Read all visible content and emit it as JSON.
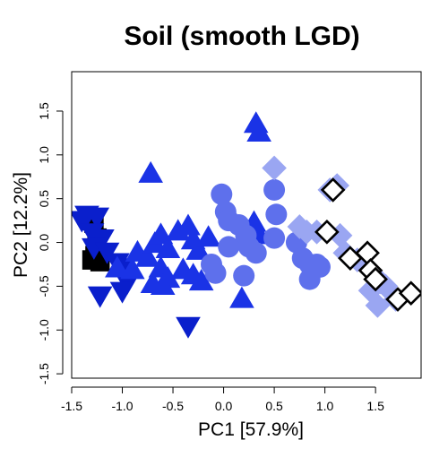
{
  "chart_data": {
    "type": "scatter",
    "title": "Soil (smooth LGD)",
    "xlabel": "PC1 [57.9%]",
    "ylabel": "PC2 [12.2%]",
    "xlim": [
      -1.5,
      1.95
    ],
    "ylim": [
      -1.55,
      1.95
    ],
    "xticks": [
      -1.5,
      -1.0,
      -0.5,
      0.0,
      0.5,
      1.0,
      1.5
    ],
    "xtick_labels": [
      "-1.5",
      "-1.0",
      "-0.5",
      "0.0",
      "0.5",
      "1.0",
      "1.5"
    ],
    "yticks": [
      -1.5,
      -1.0,
      -0.5,
      0.0,
      0.5,
      1.0,
      1.5
    ],
    "ytick_labels": [
      "-1.5",
      "-1.0",
      "-0.5",
      "0.0",
      "0.5",
      "1.0",
      "1.5"
    ],
    "grid": false,
    "legend": "none",
    "colors": {
      "black": "#000000",
      "dark_blue": "#0a1fcc",
      "blue": "#1a33e6",
      "mid_blue": "#4a5ee8",
      "light_blue": "#5e70ec",
      "pale_blue": "#9aa6f2"
    },
    "series": [
      {
        "marker": "square",
        "color": "#000000",
        "points": [
          [
            -1.32,
            0.25
          ],
          [
            -1.28,
            0.22
          ],
          [
            -1.25,
            0.05
          ],
          [
            -1.3,
            -0.2
          ],
          [
            -1.22,
            -0.22
          ],
          [
            -1.27,
            -0.15
          ]
        ]
      },
      {
        "marker": "triangle-down",
        "color": "#0a1fcc",
        "points": [
          [
            -1.4,
            0.26
          ],
          [
            -1.35,
            0.32
          ],
          [
            -1.25,
            0.3
          ],
          [
            -1.3,
            0.12
          ],
          [
            -1.2,
            0.05
          ],
          [
            -1.28,
            -0.05
          ],
          [
            -1.15,
            -0.1
          ],
          [
            -1.22,
            -0.6
          ],
          [
            -1.05,
            -0.22
          ],
          [
            -0.98,
            -0.28
          ],
          [
            -0.95,
            -0.45
          ],
          [
            -1.0,
            -0.55
          ],
          [
            -0.35,
            -0.95
          ]
        ]
      },
      {
        "marker": "triangle-up",
        "color": "#1a33e6",
        "points": [
          [
            -0.72,
            0.78
          ],
          [
            0.32,
            1.35
          ],
          [
            0.35,
            1.25
          ],
          [
            -0.85,
            -0.12
          ],
          [
            -0.75,
            -0.18
          ],
          [
            -0.68,
            -0.02
          ],
          [
            -0.62,
            0.08
          ],
          [
            -0.55,
            -0.08
          ],
          [
            -0.45,
            0.12
          ],
          [
            -0.35,
            0.18
          ],
          [
            -0.3,
            0.02
          ],
          [
            -0.25,
            -0.1
          ],
          [
            -0.15,
            0.05
          ],
          [
            -0.62,
            -0.3
          ],
          [
            -0.55,
            -0.42
          ],
          [
            -0.4,
            -0.32
          ],
          [
            -0.3,
            -0.38
          ],
          [
            -0.22,
            -0.45
          ],
          [
            -0.7,
            -0.48
          ],
          [
            -0.6,
            -0.5
          ],
          [
            0.3,
            0.22
          ],
          [
            0.35,
            0.08
          ],
          [
            0.18,
            -0.65
          ],
          [
            -1.05,
            -0.3
          ],
          [
            -0.9,
            -0.32
          ]
        ]
      },
      {
        "marker": "circle",
        "color": "#5e70ec",
        "points": [
          [
            -0.02,
            0.55
          ],
          [
            0.02,
            0.35
          ],
          [
            0.05,
            0.25
          ],
          [
            0.15,
            0.2
          ],
          [
            0.22,
            0.08
          ],
          [
            0.05,
            -0.05
          ],
          [
            0.25,
            -0.05
          ],
          [
            0.32,
            -0.12
          ],
          [
            0.5,
            0.6
          ],
          [
            0.52,
            0.32
          ],
          [
            0.5,
            0.05
          ],
          [
            0.72,
            0.0
          ],
          [
            0.78,
            -0.18
          ],
          [
            0.85,
            -0.25
          ],
          [
            0.92,
            -0.25
          ],
          [
            0.95,
            -0.28
          ],
          [
            0.85,
            -0.42
          ],
          [
            -0.12,
            -0.25
          ],
          [
            -0.08,
            -0.35
          ],
          [
            0.2,
            -0.38
          ]
        ]
      },
      {
        "marker": "diamond",
        "color": "#9aa6f2",
        "points": [
          [
            0.5,
            0.85
          ],
          [
            0.75,
            0.18
          ],
          [
            0.82,
            0.12
          ],
          [
            0.92,
            0.12
          ],
          [
            1.05,
            0.6
          ],
          [
            1.12,
            0.65
          ],
          [
            1.15,
            0.08
          ],
          [
            1.2,
            -0.12
          ],
          [
            1.32,
            -0.2
          ],
          [
            1.45,
            -0.55
          ],
          [
            1.55,
            -0.45
          ],
          [
            1.6,
            -0.5
          ],
          [
            1.52,
            -0.72
          ],
          [
            1.7,
            -0.65
          ]
        ]
      },
      {
        "marker": "diamond-open",
        "color": "#000000",
        "points": [
          [
            1.08,
            0.6
          ],
          [
            1.02,
            0.12
          ],
          [
            1.25,
            -0.18
          ],
          [
            1.42,
            -0.12
          ],
          [
            1.45,
            -0.32
          ],
          [
            1.5,
            -0.42
          ],
          [
            1.72,
            -0.65
          ],
          [
            1.85,
            -0.58
          ]
        ]
      }
    ]
  }
}
